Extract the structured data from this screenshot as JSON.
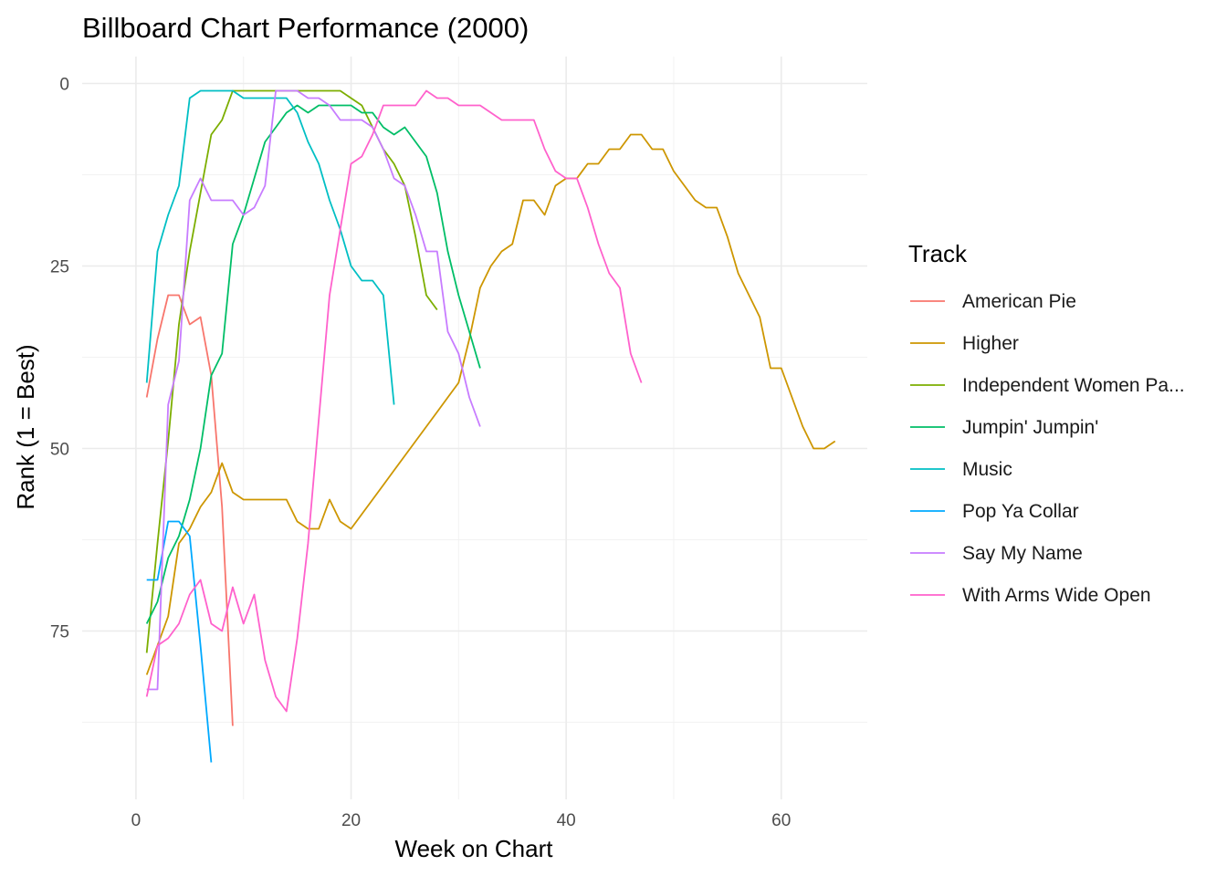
{
  "chart_data": {
    "type": "line",
    "title": "Billboard Chart Performance (2000)",
    "xlabel": "Week on Chart",
    "ylabel": "Rank (1 = Best)",
    "xlim": [
      -5,
      68
    ],
    "ylim": [
      1,
      98
    ],
    "y_reversed": true,
    "x_ticks": [
      0,
      20,
      40,
      60
    ],
    "y_ticks": [
      0,
      25,
      50,
      75
    ],
    "grid": true,
    "legend": {
      "title": "Track",
      "position": "right"
    },
    "series": [
      {
        "name": "American Pie",
        "color": "#F8766D",
        "x": [
          1,
          2,
          3,
          4,
          5,
          6,
          7,
          8,
          9
        ],
        "y": [
          43,
          35,
          29,
          29,
          33,
          32,
          40,
          58,
          88
        ]
      },
      {
        "name": "Higher",
        "color": "#CD9600",
        "x": [
          1,
          2,
          3,
          4,
          5,
          6,
          7,
          8,
          9,
          10,
          11,
          12,
          13,
          14,
          15,
          16,
          17,
          18,
          19,
          20,
          21,
          22,
          23,
          24,
          25,
          26,
          27,
          28,
          29,
          30,
          31,
          32,
          33,
          34,
          35,
          36,
          37,
          38,
          39,
          40,
          41,
          42,
          43,
          44,
          45,
          46,
          47,
          48,
          49,
          50,
          51,
          52,
          53,
          54,
          55,
          56,
          57,
          58,
          59,
          60,
          61,
          62,
          63,
          64,
          65
        ],
        "y": [
          81,
          77,
          73,
          63,
          61,
          58,
          56,
          52,
          56,
          57,
          57,
          57,
          57,
          57,
          60,
          61,
          61,
          57,
          60,
          61,
          59,
          57,
          55,
          53,
          51,
          49,
          47,
          45,
          43,
          41,
          35,
          28,
          25,
          23,
          22,
          16,
          16,
          18,
          14,
          13,
          13,
          11,
          11,
          9,
          9,
          7,
          7,
          9,
          9,
          12,
          14,
          16,
          17,
          17,
          21,
          26,
          29,
          32,
          39,
          39,
          43,
          47,
          50,
          50,
          49
        ]
      },
      {
        "name": "Independent Women Pa...",
        "color": "#7CAE00",
        "x": [
          1,
          2,
          3,
          4,
          5,
          6,
          7,
          8,
          9,
          10,
          11,
          12,
          13,
          14,
          15,
          16,
          17,
          18,
          19,
          20,
          21,
          22,
          23,
          24,
          25,
          26,
          27,
          28
        ],
        "y": [
          78,
          63,
          49,
          33,
          23,
          15,
          7,
          5,
          1,
          1,
          1,
          1,
          1,
          1,
          1,
          1,
          1,
          1,
          1,
          2,
          3,
          6,
          9,
          11,
          14,
          21,
          29,
          31
        ]
      },
      {
        "name": "Jumpin' Jumpin'",
        "color": "#00BE67",
        "x": [
          1,
          2,
          3,
          4,
          5,
          6,
          7,
          8,
          9,
          10,
          11,
          12,
          13,
          14,
          15,
          16,
          17,
          18,
          19,
          20,
          21,
          22,
          23,
          24,
          25,
          26,
          27,
          28,
          29,
          30,
          31,
          32
        ],
        "y": [
          74,
          71,
          65,
          62,
          57,
          50,
          40,
          37,
          22,
          18,
          13,
          8,
          6,
          4,
          3,
          4,
          3,
          3,
          3,
          3,
          4,
          4,
          6,
          7,
          6,
          8,
          10,
          15,
          23,
          29,
          34,
          39
        ]
      },
      {
        "name": "Music",
        "color": "#00BFC4",
        "x": [
          1,
          2,
          3,
          4,
          5,
          6,
          7,
          8,
          9,
          10,
          11,
          12,
          13,
          14,
          15,
          16,
          17,
          18,
          19,
          20,
          21,
          22,
          23,
          24
        ],
        "y": [
          41,
          23,
          18,
          14,
          2,
          1,
          1,
          1,
          1,
          2,
          2,
          2,
          2,
          2,
          4,
          8,
          11,
          16,
          20,
          25,
          27,
          27,
          29,
          44
        ]
      },
      {
        "name": "Pop Ya Collar",
        "color": "#00A9FF",
        "x": [
          1,
          2,
          3,
          4,
          5,
          6,
          7
        ],
        "y": [
          68,
          68,
          60,
          60,
          62,
          77,
          93
        ]
      },
      {
        "name": "Say My Name",
        "color": "#C77CFF",
        "x": [
          1,
          2,
          3,
          4,
          5,
          6,
          7,
          8,
          9,
          10,
          11,
          12,
          13,
          14,
          15,
          16,
          17,
          18,
          19,
          20,
          21,
          22,
          23,
          24,
          25,
          26,
          27,
          28,
          29,
          30,
          31,
          32
        ],
        "y": [
          83,
          83,
          44,
          38,
          16,
          13,
          16,
          16,
          16,
          18,
          17,
          14,
          1,
          1,
          1,
          2,
          2,
          3,
          5,
          5,
          5,
          6,
          9,
          13,
          14,
          18,
          23,
          23,
          34,
          37,
          43,
          47
        ]
      },
      {
        "name": "With Arms Wide Open",
        "color": "#FF61CC",
        "x": [
          1,
          2,
          3,
          4,
          5,
          6,
          7,
          8,
          9,
          10,
          11,
          12,
          13,
          14,
          15,
          16,
          17,
          18,
          19,
          20,
          21,
          22,
          23,
          24,
          25,
          26,
          27,
          28,
          29,
          30,
          31,
          32,
          33,
          34,
          35,
          36,
          37,
          38,
          39,
          40,
          41,
          42,
          43,
          44,
          45,
          46,
          47
        ],
        "y": [
          84,
          77,
          76,
          74,
          70,
          68,
          74,
          75,
          69,
          74,
          70,
          79,
          84,
          86,
          76,
          63,
          46,
          29,
          20,
          11,
          10,
          7,
          3,
          3,
          3,
          3,
          1,
          2,
          2,
          3,
          3,
          3,
          4,
          5,
          5,
          5,
          5,
          9,
          12,
          13,
          13,
          17,
          22,
          26,
          28,
          37,
          41
        ]
      }
    ]
  }
}
